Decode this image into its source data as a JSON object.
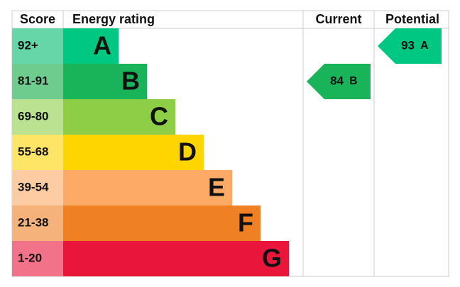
{
  "header": {
    "score": "Score",
    "rating": "Energy rating",
    "current": "Current",
    "potential": "Potential"
  },
  "bands": [
    {
      "score": "92+",
      "letter": "A",
      "color": "#00c781",
      "light": "#66d6a9"
    },
    {
      "score": "81-91",
      "letter": "B",
      "color": "#19b459",
      "light": "#6fcc8f"
    },
    {
      "score": "69-80",
      "letter": "C",
      "color": "#8dce46",
      "light": "#bbe290"
    },
    {
      "score": "55-68",
      "letter": "D",
      "color": "#ffd500",
      "light": "#ffe566"
    },
    {
      "score": "39-54",
      "letter": "E",
      "color": "#fcaa65",
      "light": "#fdcca3"
    },
    {
      "score": "21-38",
      "letter": "F",
      "color": "#ef8023",
      "light": "#f5b37b"
    },
    {
      "score": "1-20",
      "letter": "G",
      "color": "#e9153b",
      "light": "#f27389"
    }
  ],
  "current": {
    "value": "84",
    "letter": "B"
  },
  "potential": {
    "value": "93",
    "letter": "A"
  }
}
